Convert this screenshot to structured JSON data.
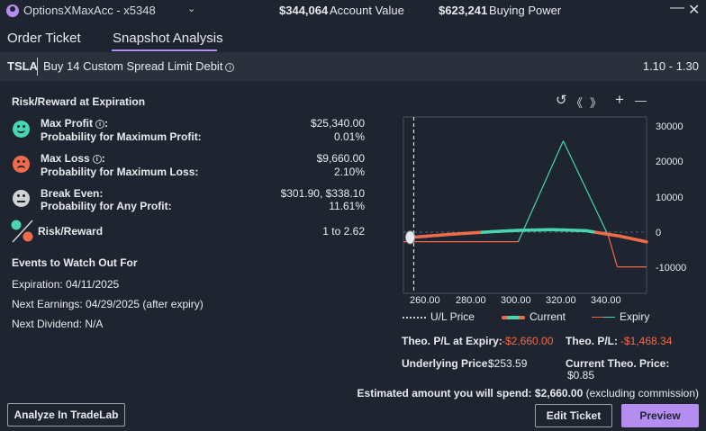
{
  "header": {
    "account_name": "OptionsXMaxAcc - x5348",
    "account_value_amount": "$344,064",
    "account_value_label": "Account Value",
    "buying_power_amount": "$623,241",
    "buying_power_label": "Buying Power",
    "minimize_glyph": "—",
    "close_glyph": "✕"
  },
  "tabs": [
    {
      "label": "Order Ticket",
      "active": false
    },
    {
      "label": "Snapshot Analysis",
      "active": true
    }
  ],
  "order": {
    "symbol": "TSLA",
    "description": "Buy 14 Custom Spread Limit Debit",
    "price_range": "1.10 - 1.30"
  },
  "risk_reward": {
    "title": "Risk/Reward at Expiration",
    "max_profit_label": "Max Profit",
    "max_profit_value": "$25,340.00",
    "prob_max_profit_label": "Probability for Maximum Profit:",
    "prob_max_profit_value": "0.01%",
    "max_loss_label": "Max Loss",
    "max_loss_value": "$9,660.00",
    "prob_max_loss_label": "Probability for Maximum Loss:",
    "prob_max_loss_value": "2.10%",
    "break_even_label": "Break Even:",
    "break_even_value": "$301.90, $338.10",
    "prob_any_profit_label": "Probability for Any Profit:",
    "prob_any_profit_value": "11.61%",
    "ratio_label": "Risk/Reward",
    "ratio_value": "1 to 2.62",
    "colon": ":"
  },
  "events": {
    "title": "Events to Watch Out For",
    "expiration": "Expiration: 04/11/2025",
    "next_earnings": "Next Earnings: 04/29/2025 (after expiry)",
    "next_dividend": "Next Dividend: N/A"
  },
  "chart_controls": {
    "reset": "↺",
    "back": "《",
    "forward": "》",
    "zoom_in": "+",
    "zoom_out": "—"
  },
  "chart_data": {
    "type": "line",
    "x_ticks": [
      "260.00",
      "280.00",
      "300.00",
      "320.00",
      "340.00"
    ],
    "y_ticks": [
      "30000",
      "20000",
      "10000",
      "0",
      "-10000"
    ],
    "xlim": [
      249,
      357
    ],
    "ylim": [
      -17000,
      32000
    ],
    "underlying_price": 253.59,
    "zero_line": 0,
    "series": [
      {
        "name": "U/L Price",
        "color": "#c9ccd2",
        "style": "dotted"
      },
      {
        "name": "Current",
        "color": "#ef6b4a",
        "accent": "#47d6b0",
        "points": [
          [
            252,
            -1470
          ],
          [
            270,
            -600
          ],
          [
            290,
            200
          ],
          [
            300,
            500
          ],
          [
            315,
            700
          ],
          [
            330,
            400
          ],
          [
            345,
            -1100
          ],
          [
            357,
            -2700
          ]
        ]
      },
      {
        "name": "Expiry",
        "color": "#47d6b0",
        "loss_color": "#ef6b4a",
        "points": [
          [
            249,
            -2660
          ],
          [
            300,
            -2660
          ],
          [
            320,
            25340
          ],
          [
            340,
            -1000
          ],
          [
            344,
            -9660
          ],
          [
            357,
            -9660
          ]
        ]
      }
    ],
    "legend_position": "bottom"
  },
  "metrics": {
    "theo_pl_expiry_label": "Theo. P/L at Expiry:",
    "theo_pl_expiry_value": "-$2,660.00",
    "theo_pl_label": "Theo. P/L:",
    "theo_pl_value": "-$1,468.34",
    "underlying_price_label": "Underlying Price:",
    "underlying_price_value": "$253.59",
    "current_theo_price_label": "Current Theo. Price:",
    "current_theo_price_value": "$0.85"
  },
  "estimate": {
    "prefix": "Estimated amount you will spend:",
    "amount": "$2,660.00",
    "suffix": "(excluding commission)"
  },
  "buttons": {
    "analyze": "Analyze In TradeLab",
    "edit_ticket": "Edit Ticket",
    "preview": "Preview"
  },
  "colors": {
    "accent": "#b58cf0",
    "profit": "#47d6b0",
    "loss": "#ef6b4a",
    "neutral_face": "#d0d2d6"
  }
}
